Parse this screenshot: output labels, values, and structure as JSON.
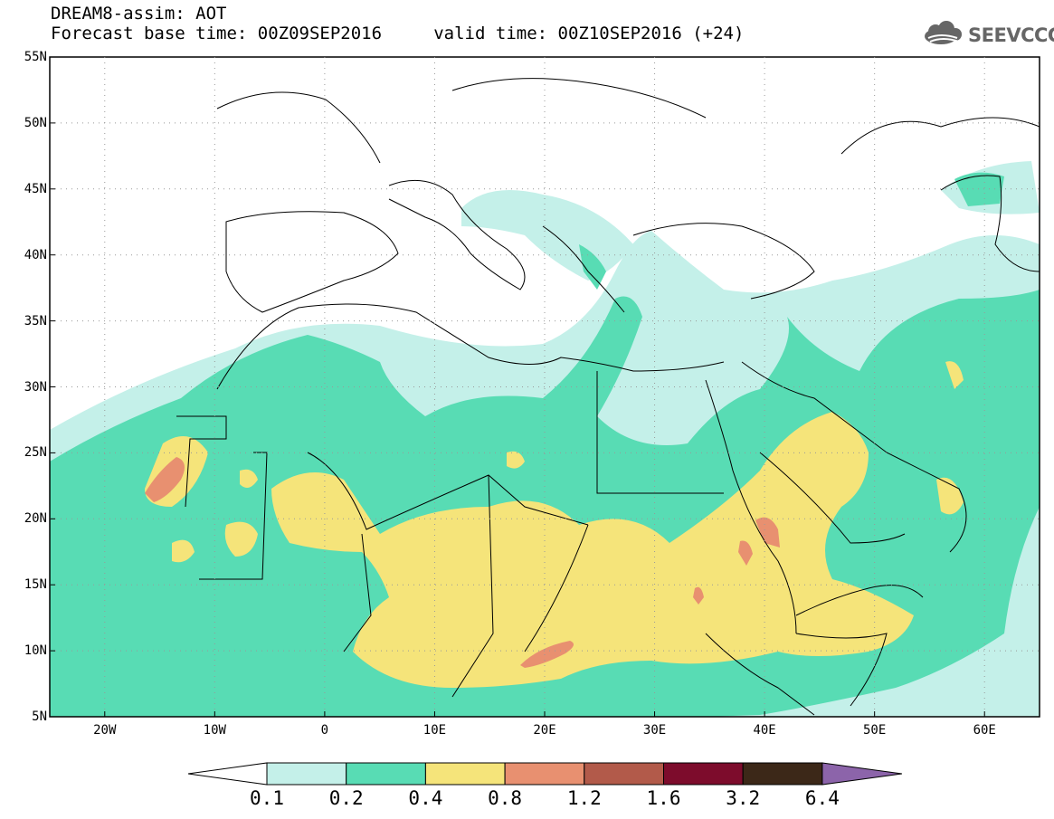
{
  "header": {
    "line1": "DREAM8-assim: AOT",
    "line2": "Forecast base time: 00Z09SEP2016     valid time: 00Z10SEP2016 (+24)",
    "logo_text": "SEEVCCC",
    "logo_icon": "cloud-logo-icon"
  },
  "map": {
    "lon_range": [
      -25,
      65
    ],
    "lat_range": [
      5,
      55
    ],
    "lat_ticks": [
      "55N",
      "50N",
      "45N",
      "40N",
      "35N",
      "30N",
      "25N",
      "20N",
      "15N",
      "10N",
      "5N"
    ],
    "lon_ticks": [
      "20W",
      "10W",
      "0",
      "10E",
      "20E",
      "30E",
      "40E",
      "50E",
      "60E"
    ]
  },
  "legend": {
    "labels": [
      "0.1",
      "0.2",
      "0.4",
      "0.8",
      "1.2",
      "1.6",
      "3.2",
      "6.4"
    ],
    "colors": [
      "#c4f0e9",
      "#58dcb4",
      "#f5e47a",
      "#e89070",
      "#b25a4a",
      "#7d0c2c",
      "#3c2818",
      "#8c64aa"
    ]
  }
}
